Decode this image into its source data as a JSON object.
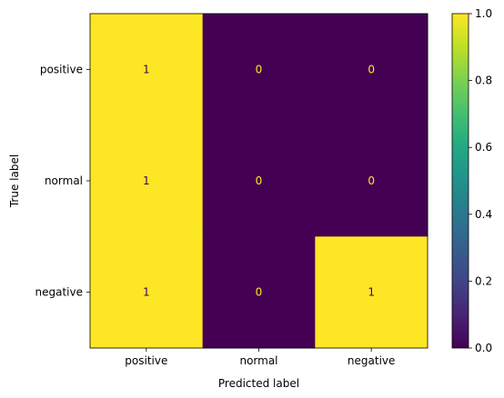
{
  "chart_data": {
    "type": "heatmap",
    "title": "",
    "xlabel": "Predicted label",
    "ylabel": "True label",
    "x_categories": [
      "positive",
      "normal",
      "negative"
    ],
    "y_categories": [
      "positive",
      "normal",
      "negative"
    ],
    "values": [
      [
        1,
        0,
        0
      ],
      [
        1,
        0,
        0
      ],
      [
        1,
        0,
        1
      ]
    ],
    "value_labels": [
      [
        "1",
        "0",
        "0"
      ],
      [
        "1",
        "0",
        "0"
      ],
      [
        "1",
        "0",
        "1"
      ]
    ],
    "colorbar": {
      "range": [
        0.0,
        1.0
      ],
      "ticks": [
        0.0,
        0.2,
        0.4,
        0.6,
        0.8,
        1.0
      ],
      "tick_labels": [
        "0.0",
        "0.2",
        "0.4",
        "0.6",
        "0.8",
        "1.0"
      ],
      "colormap": "viridis"
    },
    "colors": {
      "high": "#fde725",
      "low": "#440154",
      "text_on_low": "#fde725",
      "text_on_high": "#440154"
    },
    "grid": false
  }
}
